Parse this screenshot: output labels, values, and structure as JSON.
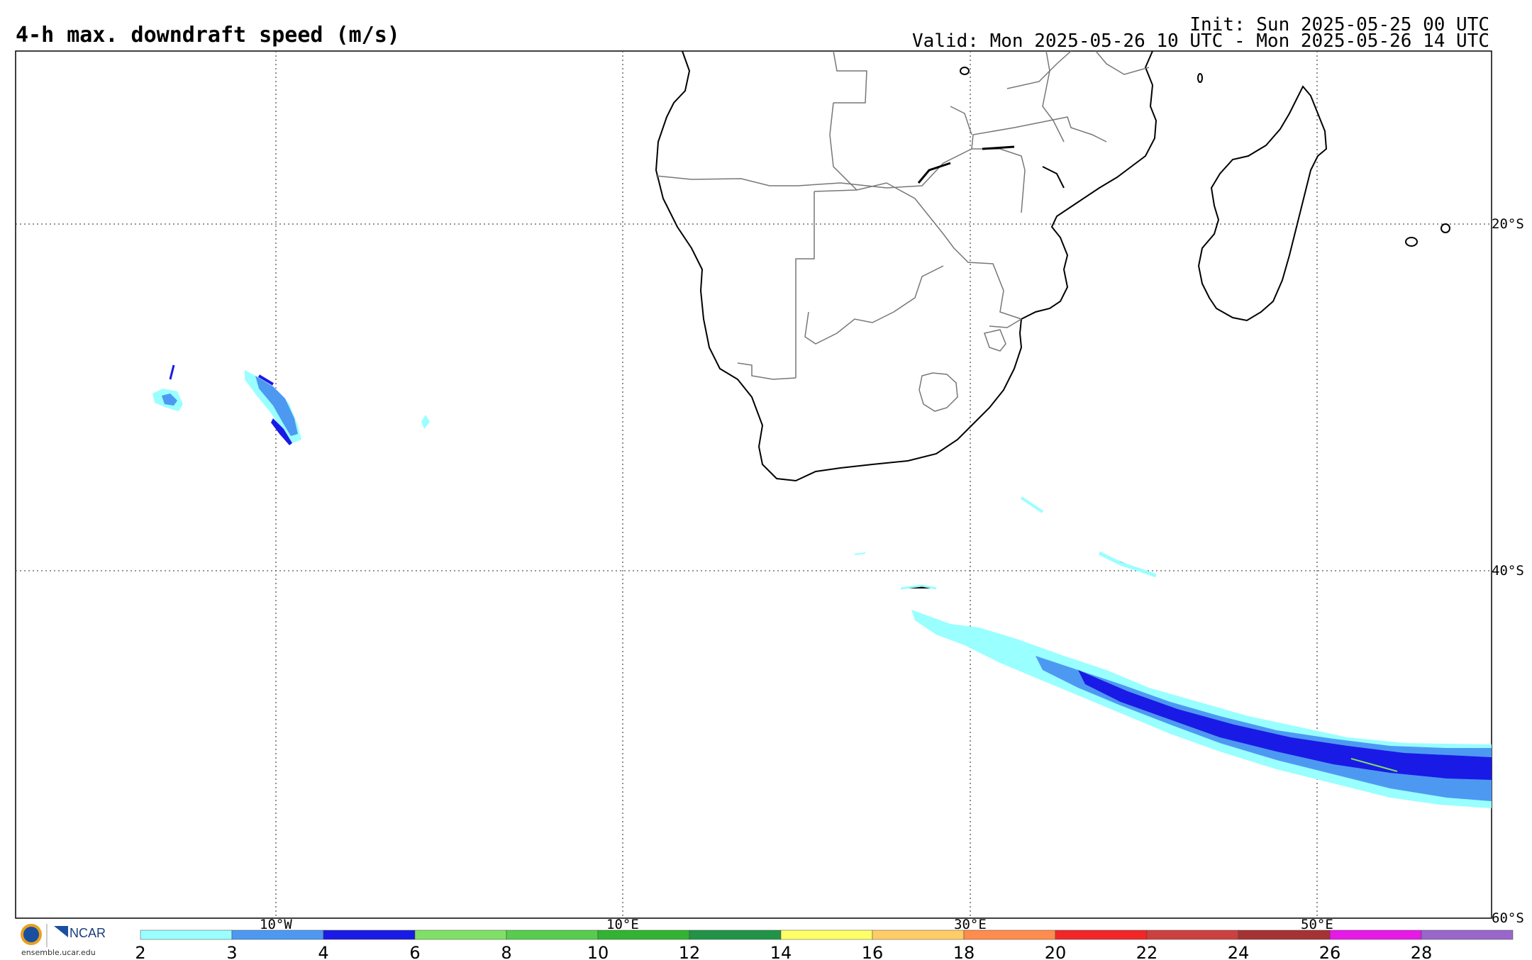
{
  "title": "4-h max. downdraft speed (m/s)",
  "init_text": "Init: Sun 2025-05-25 00 UTC",
  "valid_text": "Valid: Mon 2025-05-26 10 UTC - Mon 2025-05-26 14 UTC",
  "lat_labels": [
    "20°S",
    "40°S",
    "60°S"
  ],
  "lon_labels": [
    "10°W",
    "10°E",
    "30°E",
    "50°E"
  ],
  "colorbar": {
    "ticks": [
      "2",
      "3",
      "4",
      "6",
      "8",
      "10",
      "12",
      "14",
      "16",
      "18",
      "20",
      "22",
      "24",
      "26",
      "28"
    ],
    "colors": [
      "#99ffff",
      "#4d99f2",
      "#1a1ae6",
      "#80e066",
      "#57cc4d",
      "#33b333",
      "#219447",
      "#ffff66",
      "#ffcc66",
      "#ff8c4d",
      "#f22626",
      "#cc4040",
      "#a63333",
      "#e619e6",
      "#9966cc"
    ]
  },
  "logo": {
    "org": "NCAR",
    "url": "ensemble.ucar.edu",
    "icon": "nsf-ncar-logo-icon"
  },
  "colors": {
    "frame": "#000000",
    "gridline": "#555555",
    "coast": "#000000",
    "border": "#777777"
  }
}
